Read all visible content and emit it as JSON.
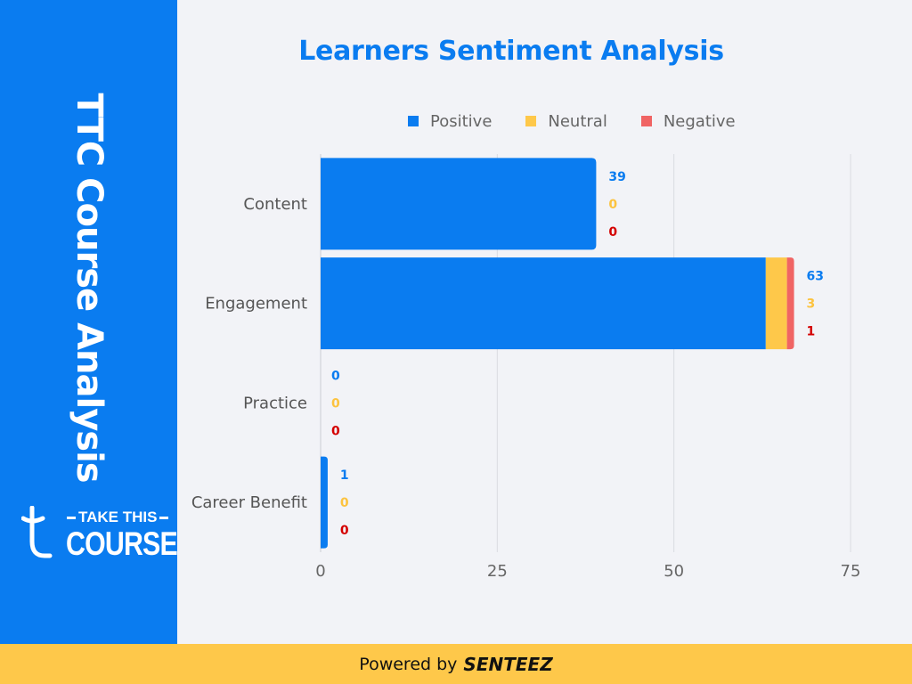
{
  "sidebar": {
    "title": "TTC Course Analysis",
    "logo_top": "TAKE THIS",
    "logo_bottom": "COURSE"
  },
  "footer": {
    "prefix": "Powered by",
    "brand": "SENTEEZ"
  },
  "colors": {
    "sidebar": "#0a7cf0",
    "positive": "#0a7cf0",
    "neutral": "#fec84a",
    "negative": "#f06464",
    "positive_label": "#0a7cf0",
    "neutral_label": "#fcc33f",
    "negative_label": "#d40000",
    "footer": "#fec84a"
  },
  "chart_data": {
    "type": "bar",
    "orientation": "horizontal",
    "stacked": true,
    "title": "Learners Sentiment Analysis",
    "categories": [
      "Content",
      "Engagement",
      "Practice",
      "Career Benefit"
    ],
    "series": [
      {
        "name": "Positive",
        "values": [
          39,
          63,
          0,
          1
        ]
      },
      {
        "name": "Neutral",
        "values": [
          0,
          3,
          0,
          0
        ]
      },
      {
        "name": "Negative",
        "values": [
          0,
          1,
          0,
          0
        ]
      }
    ],
    "xlim": [
      0,
      75
    ],
    "xticks": [
      0,
      25,
      50,
      75
    ],
    "grid": true,
    "legend_position": "top"
  }
}
